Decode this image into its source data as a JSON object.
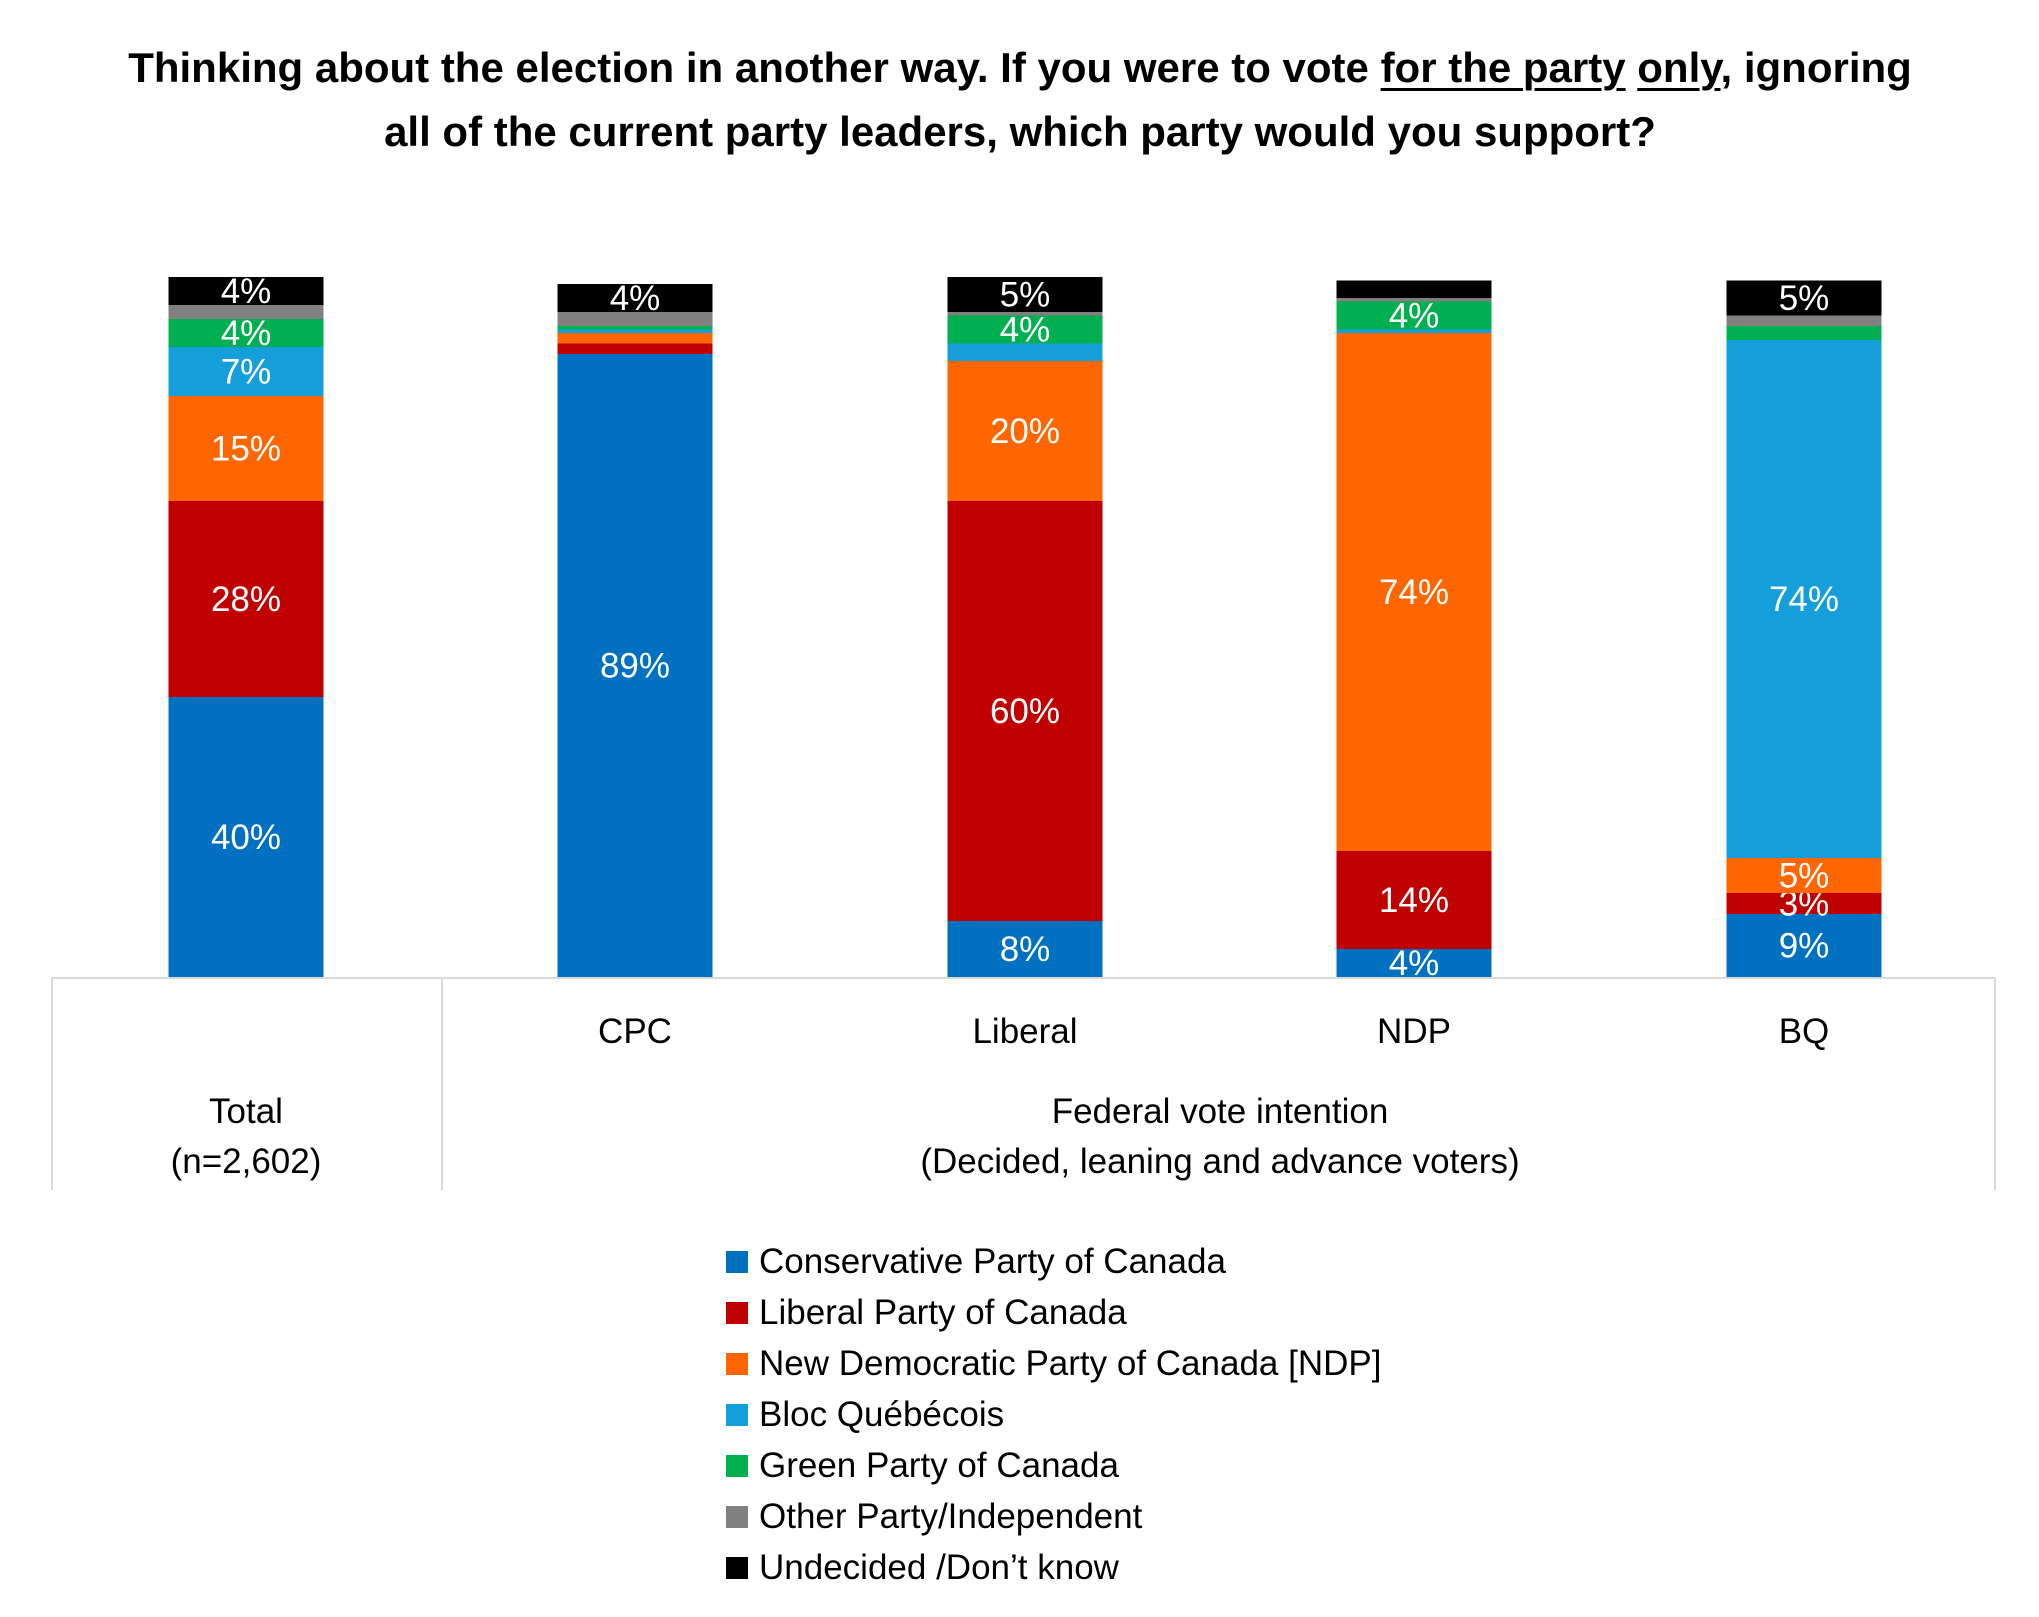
{
  "title": {
    "part1": "Thinking about the election in another way. If you were to vote ",
    "underline1": "for the party",
    "part2": " ",
    "underline2": "only",
    "part3": ", ignoring all of the current party leaders, which party would you support?"
  },
  "chart_data": {
    "type": "bar",
    "stacked": true,
    "orientation": "vertical",
    "ylim": [
      0,
      100
    ],
    "grid": false,
    "legend_position": "bottom",
    "categories": [
      "Total",
      "CPC",
      "Liberal",
      "NDP",
      "BQ"
    ],
    "category_tick_labels": [
      "",
      "CPC",
      "Liberal",
      "NDP",
      "BQ"
    ],
    "groups": [
      {
        "label_line1": "Total",
        "label_line2": "(n=2,602)",
        "categories": [
          "Total"
        ]
      },
      {
        "label_line1": "Federal vote intention",
        "label_line2": "(Decided, leaning and advance voters)",
        "categories": [
          "CPC",
          "Liberal",
          "NDP",
          "BQ"
        ]
      }
    ],
    "series": [
      {
        "name": "Conservative Party of Canada",
        "color": "#0070C0",
        "values": [
          40,
          89,
          8,
          4,
          9
        ],
        "labels": [
          "40%",
          "89%",
          "8%",
          "4%",
          "9%"
        ]
      },
      {
        "name": "Liberal Party of Canada",
        "color": "#C00000",
        "values": [
          28,
          1.5,
          60,
          14,
          3
        ],
        "labels": [
          "28%",
          "",
          "60%",
          "14%",
          "3%"
        ]
      },
      {
        "name": "New Democratic Party of Canada [NDP]",
        "color": "#FF6600",
        "values": [
          15,
          1.5,
          20,
          74,
          5
        ],
        "labels": [
          "15%",
          "",
          "20%",
          "74%",
          "5%"
        ]
      },
      {
        "name": "Bloc Québécois",
        "color": "#159FDA",
        "values": [
          7,
          0.5,
          2.5,
          0.5,
          74
        ],
        "labels": [
          "7%",
          "",
          "",
          "",
          "74%"
        ]
      },
      {
        "name": "Green Party of Canada",
        "color": "#00B050",
        "values": [
          4,
          0.5,
          4,
          4,
          2
        ],
        "labels": [
          "4%",
          "",
          "4%",
          "4%",
          ""
        ]
      },
      {
        "name": "Other Party/Independent",
        "color": "#808080",
        "values": [
          2,
          2,
          0.5,
          0.5,
          1.5
        ],
        "labels": [
          "",
          "",
          "",
          "",
          ""
        ]
      },
      {
        "name": "Undecided /Don’t know",
        "color": "#000000",
        "values": [
          4,
          4,
          5,
          2.5,
          5
        ],
        "labels": [
          "4%",
          "4%",
          "5%",
          "",
          "5%"
        ]
      }
    ]
  }
}
